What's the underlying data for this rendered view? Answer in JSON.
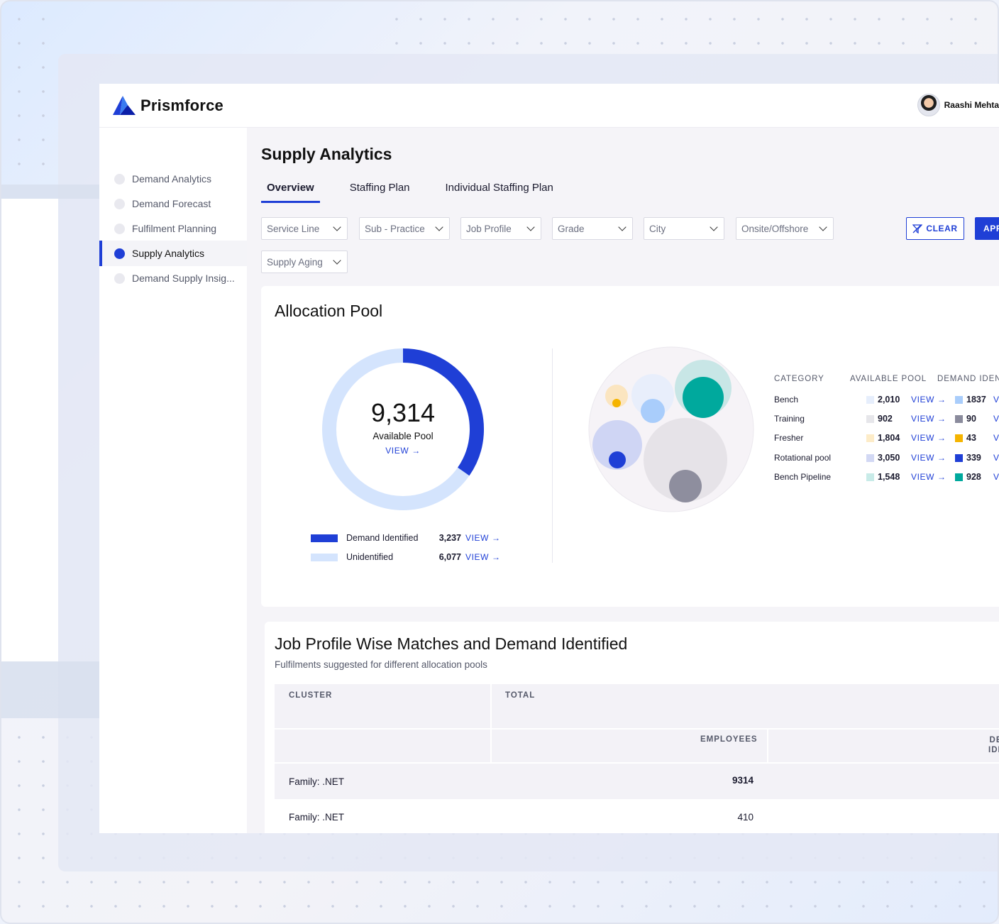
{
  "app": {
    "logo_text": "Prismforce",
    "user_name": "Raashi Mehta"
  },
  "sidebar": {
    "items": [
      {
        "label": "Demand Analytics",
        "active": false
      },
      {
        "label": "Demand Forecast",
        "active": false
      },
      {
        "label": "Fulfilment Planning",
        "active": false
      },
      {
        "label": "Supply Analytics",
        "active": true
      },
      {
        "label": "Demand Supply Insig...",
        "active": false
      }
    ]
  },
  "page": {
    "title": "Supply Analytics"
  },
  "tabs": [
    {
      "label": "Overview",
      "active": true
    },
    {
      "label": "Staffing Plan",
      "active": false
    },
    {
      "label": "Individual Staffing Plan",
      "active": false
    }
  ],
  "filters": {
    "service_line": "Service Line",
    "sub_practice": "Sub - Practice",
    "job_profile": "Job Profile",
    "grade": "Grade",
    "city": "City",
    "onsite_offshore": "Onsite/Offshore",
    "supply_aging": "Supply Aging",
    "clear_label": "CLEAR",
    "apply_label": "APPLY"
  },
  "allocation_pool": {
    "title": "Allocation Pool",
    "total": "9,314",
    "total_label": "Available Pool",
    "view_label": "VIEW →",
    "donut": {
      "identified_fraction": 0.347,
      "identified_color": "#1f3fd6",
      "unidentified_color": "#d4e4fd"
    },
    "legend": [
      {
        "label": "Demand Identified",
        "value": "3,237",
        "view": "VIEW →",
        "color": "#1f3fd6"
      },
      {
        "label": "Unidentified",
        "value": "6,077",
        "view": "VIEW →",
        "color": "#d4e4fd"
      }
    ],
    "table_headers": {
      "category": "CATEGORY",
      "available_pool": "AVAILABLE POOL",
      "demand_identified": "DEMAND IDENTIFIED"
    },
    "categories": [
      {
        "name": "Bench",
        "pool": "2,010",
        "pool_color": "#e6eefc",
        "pool_view": "VIEW →",
        "demand": "1837",
        "demand_color": "#a9cdfb",
        "demand_view": "VIEW →"
      },
      {
        "name": "Training",
        "pool": "902",
        "pool_color": "#e6e6ea",
        "pool_view": "VIEW →",
        "demand": "90",
        "demand_color": "#8a8b9c",
        "demand_view": "VIEW →"
      },
      {
        "name": "Fresher",
        "pool": "1,804",
        "pool_color": "#fdecc8",
        "pool_view": "VIEW →",
        "demand": "43",
        "demand_color": "#f5b400",
        "demand_view": "VIEW →"
      },
      {
        "name": "Rotational pool",
        "pool": "3,050",
        "pool_color": "#d2d8f4",
        "pool_view": "VIEW →",
        "demand": "339",
        "demand_color": "#1f3fd6",
        "demand_view": "VIEW →"
      },
      {
        "name": "Bench Pipeline",
        "pool": "1,548",
        "pool_color": "#c8ebe8",
        "pool_view": "VIEW →",
        "demand": "928",
        "demand_color": "#00a99d",
        "demand_view": "VIEW →"
      }
    ]
  },
  "job_profile": {
    "title": "Job Profile Wise Matches and Demand Identified",
    "subtitle": "Fulfilments suggested for different allocation pools",
    "headers": {
      "cluster": "CLUSTER",
      "total": "TOTAL",
      "employees": "EMPLOYEES",
      "demand_identified": "DEMAND IDENTIFIED"
    },
    "rows": [
      {
        "cluster": "Family: .NET",
        "employees": "9314",
        "bold": true
      },
      {
        "cluster": "Family: .NET",
        "employees": "410",
        "bold": false
      }
    ]
  }
}
